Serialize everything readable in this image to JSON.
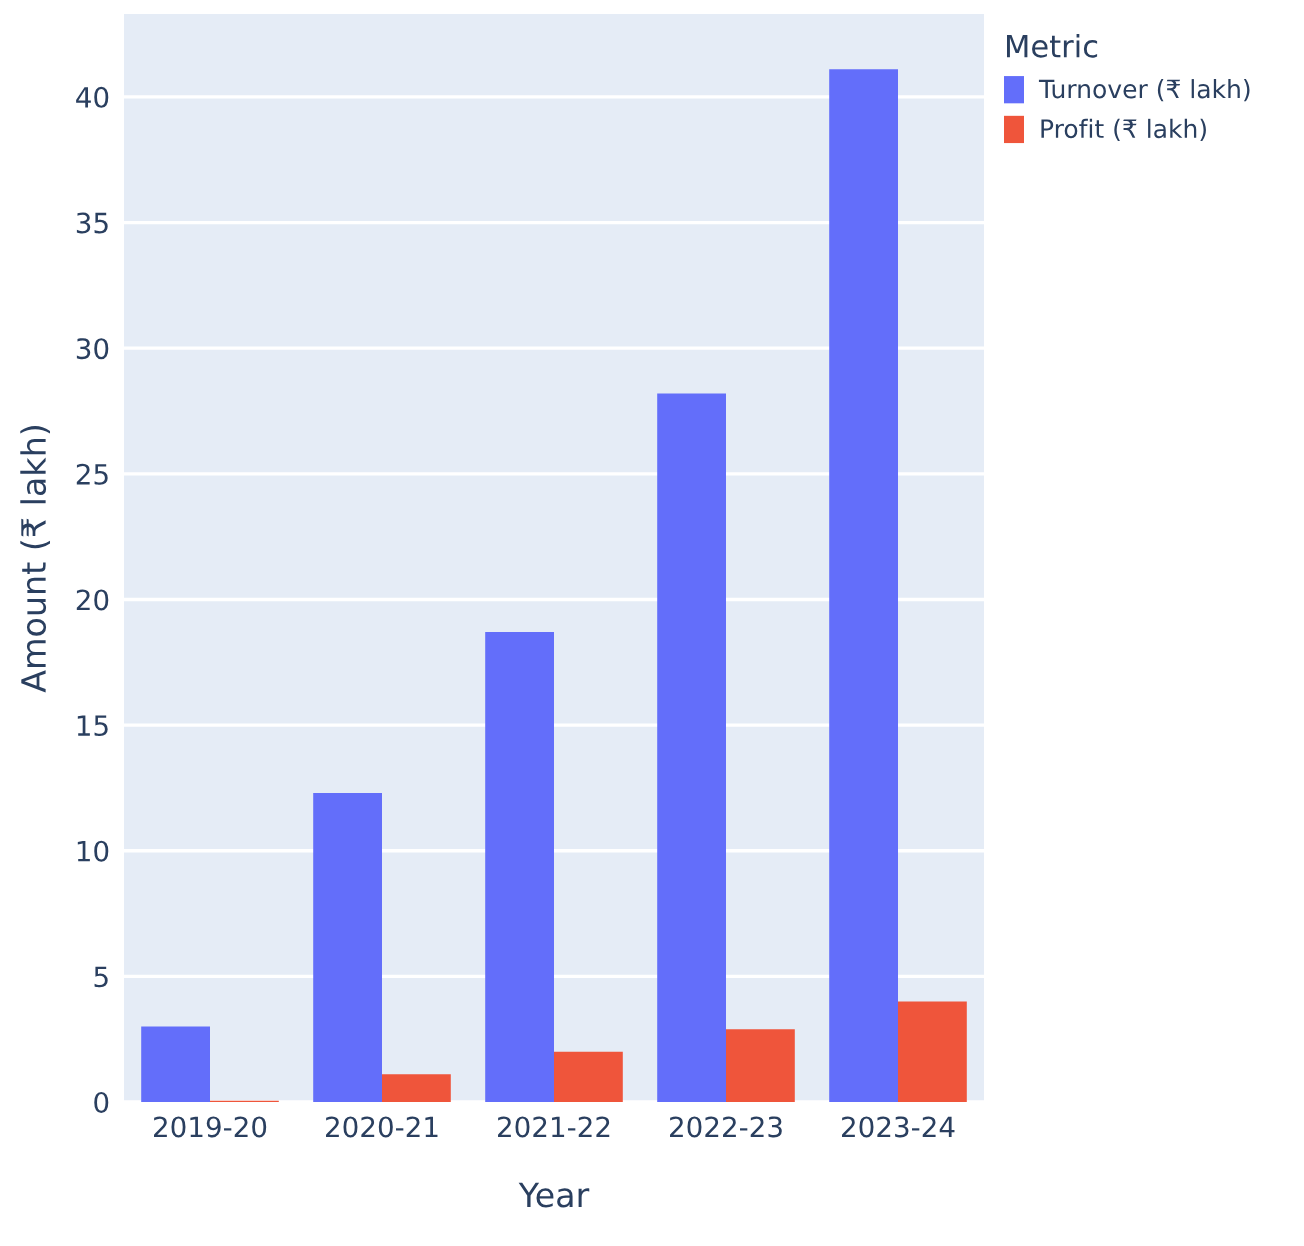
{
  "chart_data": {
    "type": "bar",
    "xlabel": "Year",
    "ylabel": "Amount (₹ lakh)",
    "legend_title": "Metric",
    "categories": [
      "2019-20",
      "2020-21",
      "2021-22",
      "2022-23",
      "2023-24"
    ],
    "series": [
      {
        "name": "Turnover (₹ lakh)",
        "color": "#636efa",
        "values": [
          3.0,
          12.3,
          18.7,
          28.2,
          41.1
        ]
      },
      {
        "name": "Profit (₹ lakh)",
        "color": "#ef553b",
        "values": [
          0.05,
          1.1,
          2.0,
          2.9,
          4.0
        ]
      }
    ],
    "ylim": [
      0,
      43.3
    ],
    "yticks": [
      0,
      5,
      10,
      15,
      20,
      25,
      30,
      35,
      40
    ],
    "grid": "y",
    "legend": "top right"
  }
}
